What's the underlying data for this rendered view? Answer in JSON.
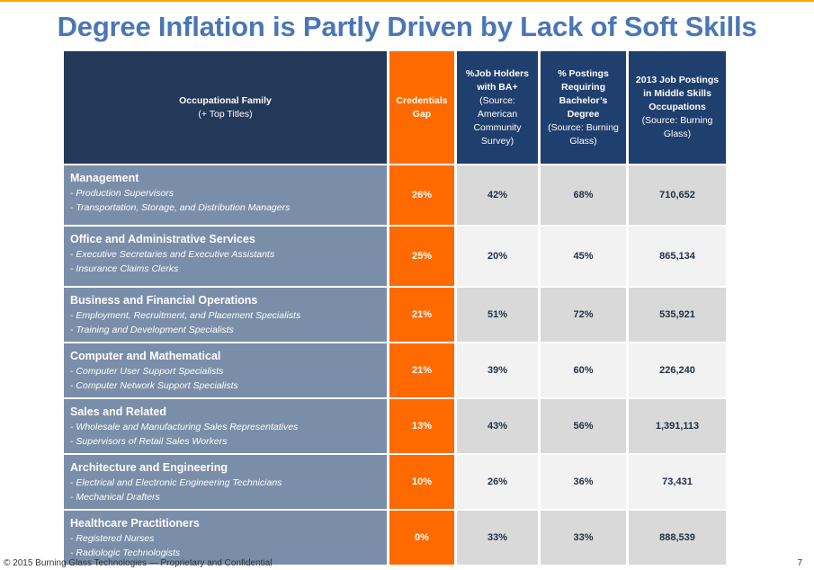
{
  "title": "Degree Inflation is Partly Driven by Lack of Soft Skills",
  "header": {
    "family": {
      "main": "Occupational Family",
      "sub": "(+ Top Titles)"
    },
    "gap": {
      "main": "Credentials Gap"
    },
    "ba": {
      "main": "%Job Holders with BA+",
      "sub": "(Source: American Community Survey)"
    },
    "postings": {
      "main": "% Postings Requiring Bachelor’s Degree",
      "sub": "(Source: Burning Glass)"
    },
    "total": {
      "main": "2013 Job Postings in Middle Skills Occupations",
      "sub": "(Source: Burning Glass)"
    }
  },
  "rows": [
    {
      "family": "Management",
      "titles": [
        "- Production Supervisors",
        "- Transportation, Storage, and Distribution Managers"
      ],
      "gap": "26%",
      "ba": "42%",
      "postings": "68%",
      "total": "710,652"
    },
    {
      "family": "Office and Administrative Services",
      "titles": [
        "- Executive Secretaries and Executive Assistants",
        "- Insurance Claims Clerks"
      ],
      "gap": "25%",
      "ba": "20%",
      "postings": "45%",
      "total": "865,134"
    },
    {
      "family": "Business and Financial Operations",
      "titles": [
        "- Employment, Recruitment, and Placement Specialists",
        "- Training and Development Specialists"
      ],
      "gap": "21%",
      "ba": "51%",
      "postings": "72%",
      "total": "535,921"
    },
    {
      "family": "Computer and Mathematical",
      "titles": [
        "- Computer User Support Specialists",
        "- Computer Network Support Specialists"
      ],
      "gap": "21%",
      "ba": "39%",
      "postings": "60%",
      "total": "226,240"
    },
    {
      "family": "Sales and Related",
      "titles": [
        "- Wholesale and Manufacturing Sales Representatives",
        "- Supervisors of Retail Sales Workers"
      ],
      "gap": "13%",
      "ba": "43%",
      "postings": "56%",
      "total": "1,391,113"
    },
    {
      "family": "Architecture and Engineering",
      "titles": [
        "- Electrical and Electronic Engineering Technicians",
        "- Mechanical Drafters"
      ],
      "gap": "10%",
      "ba": "26%",
      "postings": "36%",
      "total": "73,431"
    },
    {
      "family": "Healthcare Practitioners",
      "titles": [
        "- Registered Nurses",
        "- Radiologic Technologists"
      ],
      "gap": "0%",
      "ba": "33%",
      "postings": "33%",
      "total": "888,539"
    }
  ],
  "colors": {
    "navy": "#1f3f6f",
    "orange": "#ff6a00",
    "slate": "#7a8ea9",
    "title_blue": "#4a77b4"
  },
  "footer": "© 2015 Burning Glass Technologies — Proprietary and Confidential",
  "page_number": "7"
}
